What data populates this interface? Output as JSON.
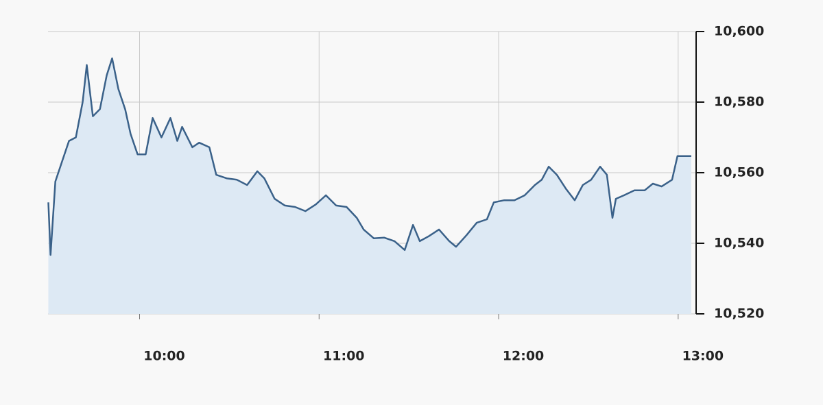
{
  "chart_data": {
    "type": "area",
    "x": [
      9.492,
      9.504,
      9.531,
      9.569,
      9.607,
      9.645,
      9.683,
      9.706,
      9.74,
      9.779,
      9.817,
      9.847,
      9.882,
      9.92,
      9.95,
      9.989,
      10.034,
      10.073,
      10.122,
      10.172,
      10.21,
      10.237,
      10.294,
      10.332,
      10.389,
      10.427,
      10.485,
      10.542,
      10.599,
      10.656,
      10.695,
      10.752,
      10.809,
      10.866,
      10.924,
      10.981,
      11.038,
      11.095,
      11.153,
      11.21,
      11.248,
      11.305,
      11.363,
      11.42,
      11.477,
      11.523,
      11.561,
      11.611,
      11.668,
      11.725,
      11.763,
      11.821,
      11.878,
      11.935,
      11.973,
      12.031,
      12.088,
      12.145,
      12.202,
      12.24,
      12.279,
      12.324,
      12.374,
      12.424,
      12.469,
      12.515,
      12.565,
      12.603,
      12.634,
      12.653,
      12.698,
      12.756,
      12.813,
      12.859,
      12.908,
      12.966,
      12.996,
      13.073
    ],
    "values": [
      10551.6,
      10536.7,
      10557.5,
      10563.3,
      10569,
      10570,
      10580,
      10590.5,
      10576,
      10578,
      10587.6,
      10592.4,
      10583.7,
      10577.9,
      10571,
      10565.2,
      10565.2,
      10575.5,
      10570,
      10575.5,
      10569,
      10573,
      10567.2,
      10568.5,
      10567.2,
      10559.4,
      10558.4,
      10558,
      10556.5,
      10560.4,
      10558.4,
      10552.6,
      10550.7,
      10550.3,
      10549.1,
      10551,
      10553.6,
      10550.7,
      10550.3,
      10547.2,
      10543.9,
      10541.4,
      10541.6,
      10540.6,
      10538.1,
      10545.2,
      10540.6,
      10542,
      10543.9,
      10540.6,
      10539,
      10542.3,
      10545.8,
      10546.8,
      10551.6,
      10552.2,
      10552.2,
      10553.6,
      10556.5,
      10558,
      10561.7,
      10559.4,
      10555.5,
      10552.2,
      10556.5,
      10558,
      10561.7,
      10559.4,
      10547.2,
      10552.6,
      10553.6,
      10555,
      10555,
      10556.9,
      10556.1,
      10558,
      10564.7,
      10564.7
    ],
    "color": "#3a6189",
    "fill": "#dde9f4",
    "xlim": [
      9.49,
      13.1
    ],
    "xticks": [
      {
        "value": 10,
        "label": "10:00"
      },
      {
        "value": 11,
        "label": "11:00"
      },
      {
        "value": 12,
        "label": "12:00"
      },
      {
        "value": 13,
        "label": "13:00"
      }
    ],
    "ylim": [
      10520,
      10600
    ],
    "yticks": [
      {
        "value": 10520,
        "label": "10,520"
      },
      {
        "value": 10540,
        "label": "10,540"
      },
      {
        "value": 10560,
        "label": "10,560"
      },
      {
        "value": 10580,
        "label": "10,580"
      },
      {
        "value": 10600,
        "label": "10,600"
      }
    ],
    "grid": true
  }
}
